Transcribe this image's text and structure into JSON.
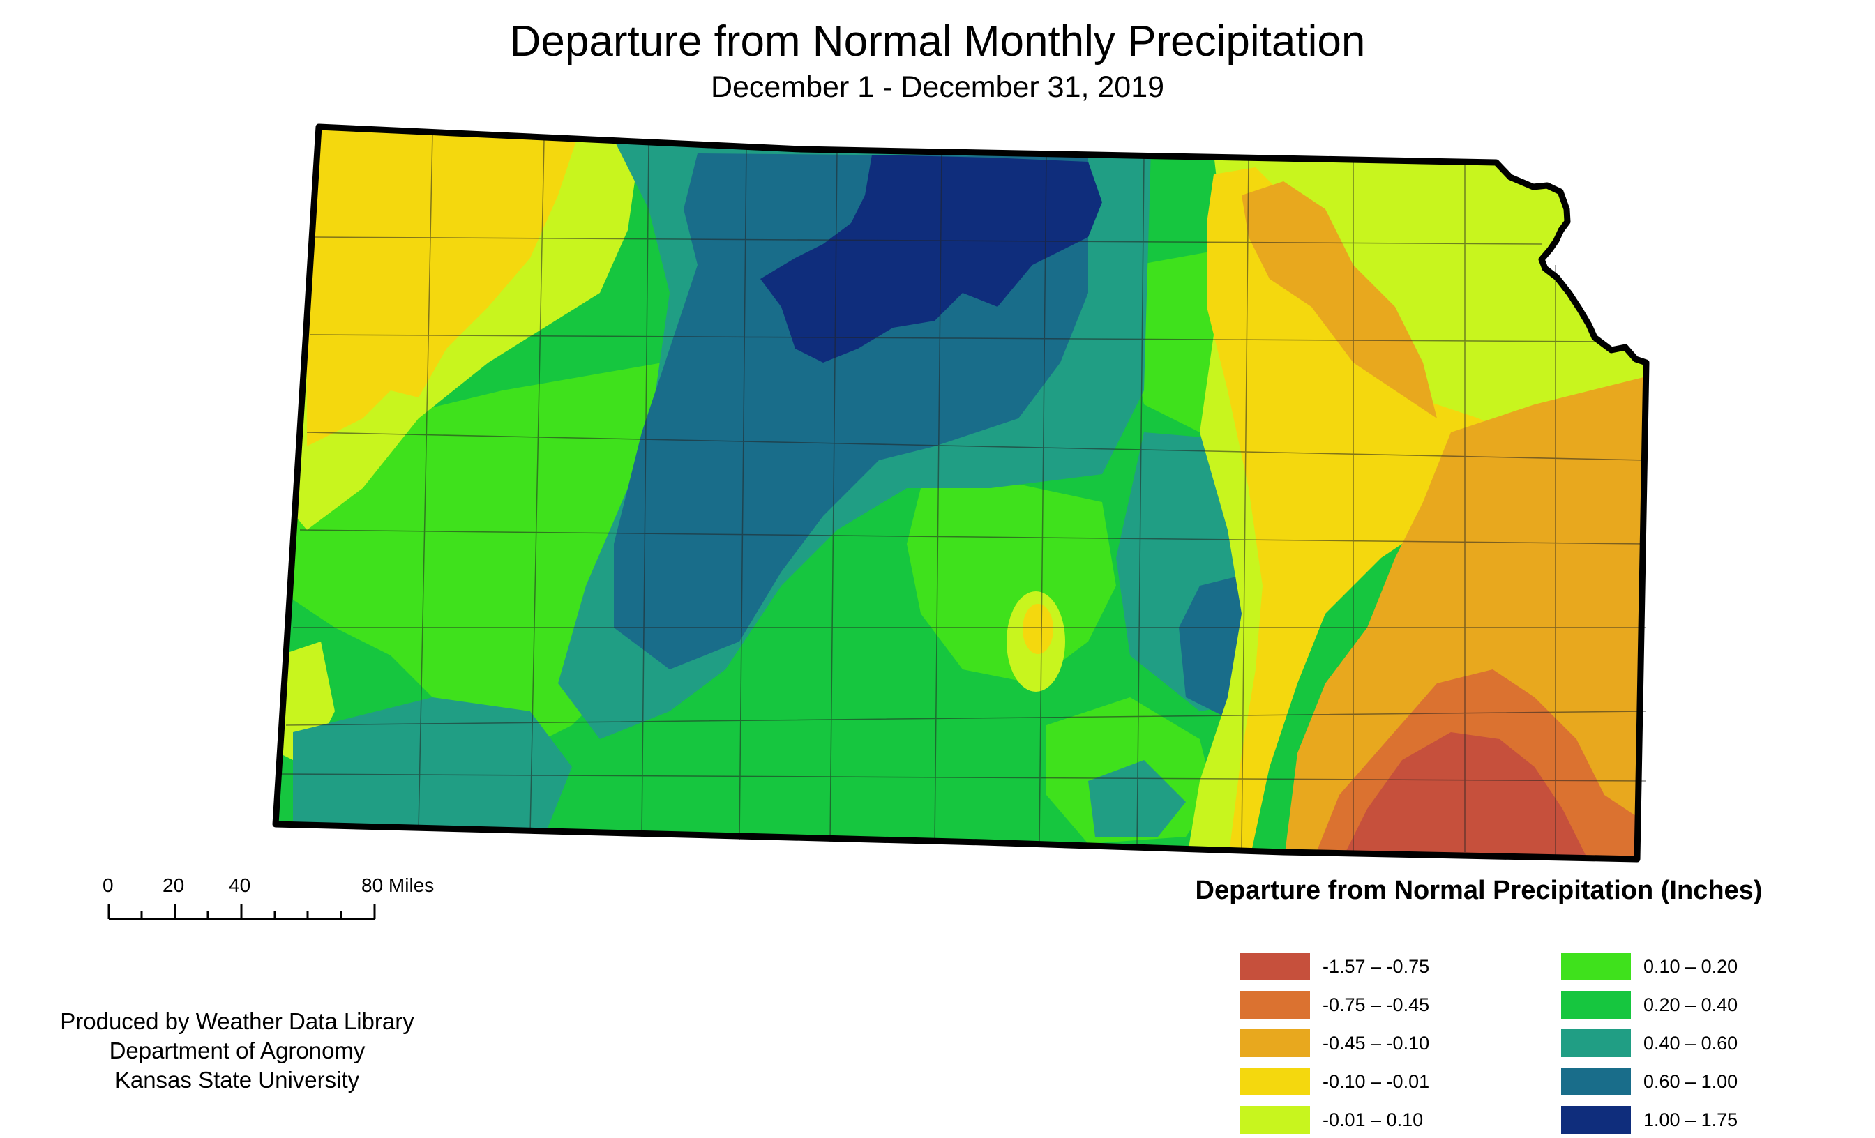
{
  "title": "Departure from Normal Monthly Precipitation",
  "subtitle": "December 1 - December 31, 2019",
  "scale_bar": {
    "labels": [
      "0",
      "20",
      "40",
      "80 Miles"
    ]
  },
  "credits": [
    "Produced by Weather Data Library",
    "Department of Agronomy",
    "Kansas State University"
  ],
  "legend": {
    "title": "Departure from Normal Precipitation (Inches)",
    "items": [
      {
        "label": "-1.57 – -0.75",
        "color": "#c6503c"
      },
      {
        "label": "-0.75 – -0.45",
        "color": "#db7230"
      },
      {
        "label": "-0.45 – -0.10",
        "color": "#e8a81e"
      },
      {
        "label": "-0.10 – -0.01",
        "color": "#f4d80e"
      },
      {
        "label": "-0.01 – 0.10",
        "color": "#c8f51e"
      },
      {
        "label": "0.10 – 0.20",
        "color": "#3fe11c"
      },
      {
        "label": "0.20 – 0.40",
        "color": "#16c63f"
      },
      {
        "label": "0.40 – 0.60",
        "color": "#209e84"
      },
      {
        "label": "0.60 – 1.00",
        "color": "#196d8a"
      },
      {
        "label": "1.00 – 1.75",
        "color": "#0f2d7c"
      }
    ]
  }
}
